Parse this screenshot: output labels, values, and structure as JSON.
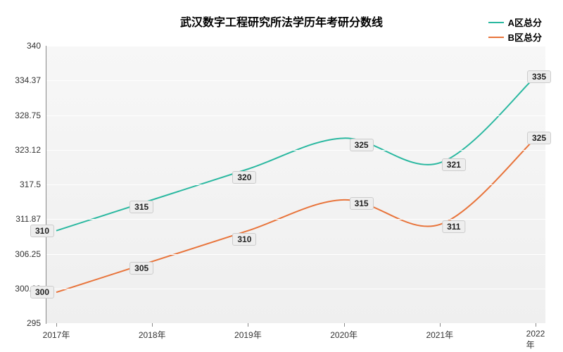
{
  "chart": {
    "type": "line",
    "title": "武汉数字工程研究所法学历年考研分数线",
    "title_fontsize": 16,
    "title_weight": "bold",
    "background_gradient": [
      "#f7f7f7",
      "#efefef"
    ],
    "grid_color": "#ffffff",
    "axis_color": "#888888",
    "label_color": "#333333",
    "x": {
      "categories": [
        "2017年",
        "2018年",
        "2019年",
        "2020年",
        "2021年",
        "2022年"
      ],
      "label_fontsize": 12
    },
    "y": {
      "min": 295,
      "max": 340,
      "ticks": [
        295,
        300.62,
        306.25,
        311.87,
        317.5,
        323.12,
        328.75,
        334.37,
        340
      ],
      "label_fontsize": 12
    },
    "series": [
      {
        "name": "A区总分",
        "color": "#2ab8a0",
        "line_width": 2,
        "smooth": true,
        "data": [
          310,
          315,
          320,
          325,
          321,
          335
        ],
        "label_offsets": [
          {
            "dx": -20,
            "dy": 0
          },
          {
            "dx": -15,
            "dy": 10
          },
          {
            "dx": -5,
            "dy": 12
          },
          {
            "dx": 25,
            "dy": 10
          },
          {
            "dx": 20,
            "dy": 3
          },
          {
            "dx": 5,
            "dy": 0
          }
        ]
      },
      {
        "name": "B区总分",
        "color": "#e8743b",
        "line_width": 2,
        "smooth": true,
        "data": [
          300,
          305,
          310,
          315,
          311,
          325
        ],
        "label_offsets": [
          {
            "dx": -20,
            "dy": 0
          },
          {
            "dx": -15,
            "dy": 10
          },
          {
            "dx": -5,
            "dy": 12
          },
          {
            "dx": 25,
            "dy": 5
          },
          {
            "dx": 20,
            "dy": 3
          },
          {
            "dx": 5,
            "dy": 0
          }
        ]
      }
    ],
    "legend": {
      "position": "top-right",
      "fontsize": 13
    }
  }
}
